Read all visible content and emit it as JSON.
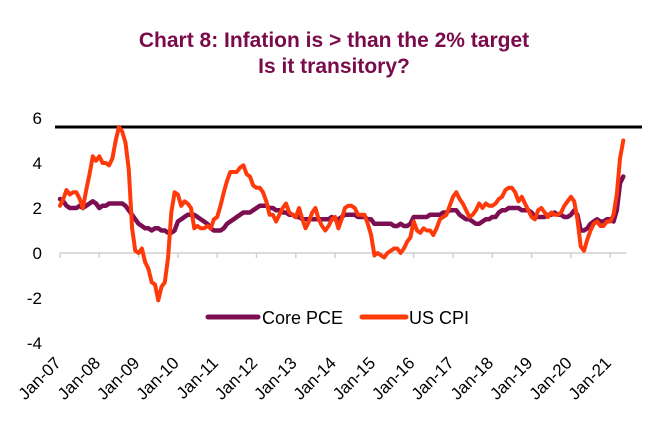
{
  "chart_data": {
    "type": "line",
    "title": "Chart 8: Infation is > than the 2% target",
    "subtitle": "Is it transitory?",
    "xlabel": "",
    "ylabel": "",
    "ylim": [
      -4,
      6
    ],
    "yticks": [
      "6",
      "4",
      "2",
      "0",
      "-2",
      "-4"
    ],
    "ytick_values": [
      6,
      4,
      2,
      0,
      -2,
      -4
    ],
    "xticks": [
      "Jan-07",
      "Jan-08",
      "Jan-09",
      "Jan-10",
      "Jan-11",
      "Jan-12",
      "Jan-13",
      "Jan-14",
      "Jan-15",
      "Jan-16",
      "Jan-17",
      "Jan-18",
      "Jan-19",
      "Jan-20",
      "Jan-21"
    ],
    "x_start": "Jan-07",
    "x_frequency": "monthly",
    "reference_line": 5.6,
    "grid": false,
    "legend_placement": "bottom-center",
    "colors": {
      "title": "#7a0a4a",
      "core_pce": "#7b0f52",
      "us_cpi": "#ff3a0a",
      "reference_line": "#000000",
      "axis": "#d0d0d0"
    },
    "series": [
      {
        "name": "Core PCE",
        "values": [
          2.4,
          2.3,
          2.1,
          2.0,
          2.0,
          2.0,
          2.1,
          2.0,
          2.1,
          2.2,
          2.3,
          2.2,
          2.0,
          2.1,
          2.1,
          2.2,
          2.2,
          2.2,
          2.2,
          2.2,
          2.1,
          1.9,
          1.7,
          1.5,
          1.3,
          1.2,
          1.1,
          1.1,
          1.0,
          1.1,
          1.1,
          1.0,
          1.0,
          0.9,
          0.9,
          1.0,
          1.4,
          1.5,
          1.6,
          1.7,
          1.7,
          1.7,
          1.6,
          1.5,
          1.4,
          1.3,
          1.1,
          1.0,
          1.0,
          1.0,
          1.1,
          1.3,
          1.4,
          1.5,
          1.6,
          1.7,
          1.8,
          1.8,
          1.8,
          1.9,
          2.0,
          2.1,
          2.1,
          2.1,
          2.0,
          2.0,
          1.9,
          1.9,
          1.8,
          1.8,
          1.7,
          1.7,
          1.6,
          1.6,
          1.5,
          1.5,
          1.5,
          1.5,
          1.5,
          1.5,
          1.5,
          1.5,
          1.5,
          1.6,
          1.5,
          1.5,
          1.6,
          1.7,
          1.7,
          1.7,
          1.7,
          1.6,
          1.6,
          1.6,
          1.5,
          1.5,
          1.3,
          1.3,
          1.3,
          1.3,
          1.3,
          1.3,
          1.2,
          1.2,
          1.3,
          1.2,
          1.2,
          1.3,
          1.6,
          1.6,
          1.6,
          1.6,
          1.6,
          1.7,
          1.7,
          1.7,
          1.7,
          1.8,
          1.8,
          1.9,
          1.9,
          1.9,
          1.7,
          1.6,
          1.5,
          1.5,
          1.4,
          1.3,
          1.3,
          1.4,
          1.5,
          1.5,
          1.6,
          1.6,
          1.8,
          1.9,
          1.9,
          2.0,
          2.0,
          2.0,
          2.0,
          1.9,
          1.9,
          1.9,
          1.8,
          1.6,
          1.6,
          1.6,
          1.6,
          1.7,
          1.7,
          1.8,
          1.7,
          1.7,
          1.6,
          1.6,
          1.7,
          1.9,
          1.7,
          1.0,
          1.0,
          1.1,
          1.3,
          1.4,
          1.5,
          1.4,
          1.4,
          1.5,
          1.5,
          1.4,
          1.9,
          3.1,
          3.4
        ]
      },
      {
        "name": "US CPI",
        "values": [
          2.1,
          2.4,
          2.8,
          2.6,
          2.7,
          2.7,
          2.4,
          2.0,
          2.8,
          3.5,
          4.3,
          4.1,
          4.3,
          4.0,
          4.0,
          3.9,
          4.2,
          5.0,
          5.6,
          5.4,
          4.9,
          3.7,
          1.1,
          0.1,
          0.0,
          0.2,
          -0.4,
          -0.7,
          -1.3,
          -1.4,
          -2.1,
          -1.5,
          -1.3,
          -0.2,
          1.8,
          2.7,
          2.6,
          2.1,
          2.3,
          2.2,
          2.0,
          1.1,
          1.2,
          1.1,
          1.1,
          1.2,
          1.1,
          1.5,
          1.6,
          2.1,
          2.7,
          3.2,
          3.6,
          3.6,
          3.6,
          3.8,
          3.9,
          3.5,
          3.4,
          3.0,
          2.9,
          2.9,
          2.7,
          2.3,
          1.7,
          1.7,
          1.4,
          1.7,
          2.0,
          2.2,
          1.8,
          1.7,
          1.6,
          2.0,
          1.5,
          1.1,
          1.4,
          1.8,
          2.0,
          1.5,
          1.2,
          1.0,
          1.2,
          1.5,
          1.6,
          1.1,
          1.5,
          2.0,
          2.1,
          2.1,
          2.0,
          1.7,
          1.7,
          1.7,
          1.3,
          0.8,
          -0.1,
          0.0,
          -0.1,
          -0.2,
          0.0,
          0.1,
          0.2,
          0.2,
          0.0,
          0.2,
          0.5,
          0.7,
          1.4,
          1.0,
          0.9,
          1.1,
          1.0,
          1.0,
          0.8,
          1.1,
          1.5,
          1.6,
          1.7,
          2.1,
          2.5,
          2.7,
          2.4,
          2.2,
          1.9,
          1.6,
          1.7,
          1.9,
          2.2,
          2.0,
          2.2,
          2.1,
          2.1,
          2.2,
          2.4,
          2.5,
          2.8,
          2.9,
          2.9,
          2.7,
          2.3,
          2.5,
          2.2,
          1.9,
          1.6,
          1.5,
          1.9,
          2.0,
          1.8,
          1.6,
          1.8,
          1.7,
          1.7,
          1.8,
          2.1,
          2.3,
          2.5,
          2.3,
          1.5,
          0.3,
          0.1,
          0.6,
          1.0,
          1.3,
          1.4,
          1.2,
          1.2,
          1.4,
          1.4,
          1.7,
          2.6,
          4.2,
          5.0
        ]
      }
    ]
  }
}
